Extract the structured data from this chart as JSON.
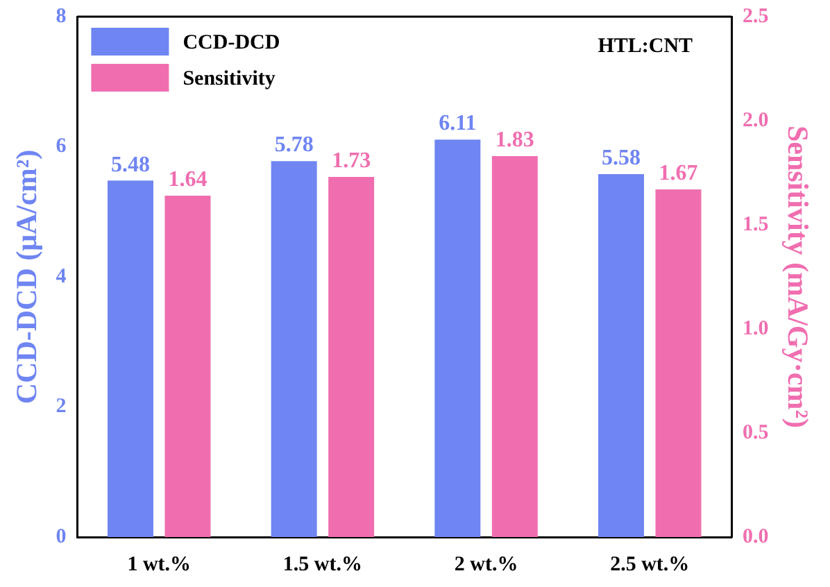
{
  "chart_data": {
    "type": "bar",
    "categories": [
      "1 wt.%",
      "1.5 wt.%",
      "2 wt.%",
      "2.5 wt.%"
    ],
    "series": [
      {
        "name": "CCD-DCD",
        "color": "#6f85f2",
        "values": [
          5.48,
          5.78,
          6.11,
          5.58
        ]
      },
      {
        "name": "Sensitivity",
        "color": "#f06eb0",
        "axis": "y2",
        "values": [
          1.64,
          1.73,
          1.83,
          1.67
        ]
      }
    ],
    "ylabel": "CCD-DCD (μA/cm²)",
    "y2label": "Sensitivity (mA/Gy·cm²)",
    "ylim": [
      0,
      8
    ],
    "yticks": [
      0,
      2,
      4,
      6,
      8
    ],
    "y2lim": [
      0,
      2.5
    ],
    "y2ticks": [
      {
        "value": 0,
        "label": "0.0"
      },
      {
        "value": 0.5,
        "label": "0.5"
      },
      {
        "value": 1,
        "label": "1.0"
      },
      {
        "value": 1.5,
        "label": "1.5"
      },
      {
        "value": 2,
        "label": "2.0"
      },
      {
        "value": 2.5,
        "label": "2.5"
      }
    ],
    "annotations": [
      "HTL:CNT"
    ],
    "data_labels": true,
    "legend": "top left",
    "grid": false
  }
}
